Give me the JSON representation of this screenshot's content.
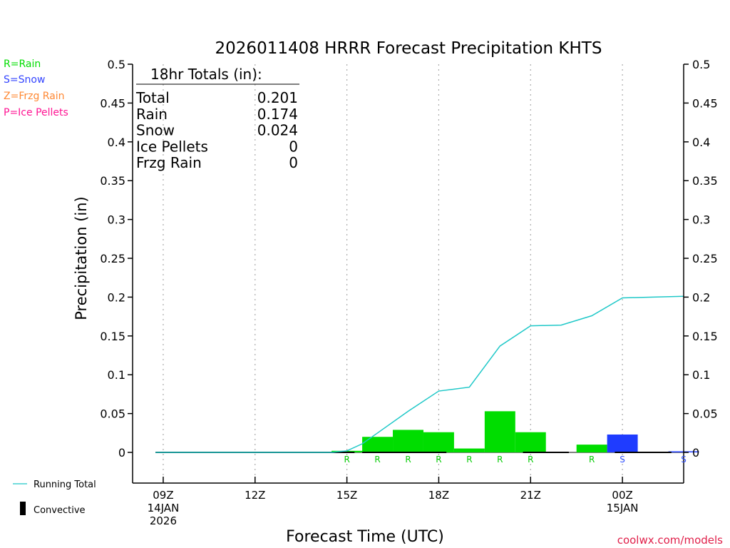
{
  "chart_data": {
    "type": "bar",
    "title": "2026011408 HRRR Forecast Precipitation KHTS",
    "xlabel": "Forecast Time (UTC)",
    "ylabel": "Precipitation (in)",
    "ylim": [
      -0.04,
      0.5
    ],
    "yticks": [
      0,
      0.05,
      0.1,
      0.15,
      0.2,
      0.25,
      0.3,
      0.35,
      0.4,
      0.45,
      0.5
    ],
    "ytick_labels": [
      "0",
      "0.05",
      "0.1",
      "0.15",
      "0.2",
      "0.25",
      "0.3",
      "0.35",
      "0.4",
      "0.45",
      "0.5"
    ],
    "x_unit": "hours after 09Z 14JAN 2026",
    "xlim": [
      -1,
      17
    ],
    "xticks": [
      {
        "hour": 0,
        "lines": [
          "09Z",
          "14JAN",
          "2026"
        ]
      },
      {
        "hour": 3,
        "lines": [
          "12Z"
        ]
      },
      {
        "hour": 6,
        "lines": [
          "15Z"
        ]
      },
      {
        "hour": 9,
        "lines": [
          "18Z"
        ]
      },
      {
        "hour": 12,
        "lines": [
          "21Z"
        ]
      },
      {
        "hour": 15,
        "lines": [
          "00Z",
          "15JAN"
        ]
      }
    ],
    "bars": [
      {
        "start": 5.5,
        "value": 0.002,
        "ptype": "R",
        "color": "#00dd00"
      },
      {
        "start": 6.5,
        "value": 0.02,
        "ptype": "R",
        "color": "#00dd00"
      },
      {
        "start": 7.5,
        "value": 0.029,
        "ptype": "R",
        "color": "#00dd00"
      },
      {
        "start": 8.5,
        "value": 0.026,
        "ptype": "R",
        "color": "#00dd00"
      },
      {
        "start": 9.5,
        "value": 0.005,
        "ptype": "R",
        "color": "#00dd00"
      },
      {
        "start": 10.5,
        "value": 0.053,
        "ptype": "R",
        "color": "#00dd00"
      },
      {
        "start": 11.5,
        "value": 0.026,
        "ptype": "R",
        "color": "#00dd00"
      },
      {
        "start": 13.5,
        "value": 0.01,
        "ptype": "R",
        "color": "#00dd00"
      },
      {
        "start": 14.5,
        "value": 0.023,
        "ptype": "S",
        "color": "#1f3cff"
      },
      {
        "start": 16.5,
        "value": 0.001,
        "ptype": "S",
        "color": "#1f3cff"
      }
    ],
    "ptype_marks": [
      {
        "hour": 6,
        "label": "R",
        "color": "#00cc00"
      },
      {
        "hour": 7,
        "label": "R",
        "color": "#00cc00"
      },
      {
        "hour": 8,
        "label": "R",
        "color": "#00cc00"
      },
      {
        "hour": 9,
        "label": "R",
        "color": "#00cc00"
      },
      {
        "hour": 10,
        "label": "R",
        "color": "#00cc00"
      },
      {
        "hour": 11,
        "label": "R",
        "color": "#00cc00"
      },
      {
        "hour": 12,
        "label": "R",
        "color": "#00cc00"
      },
      {
        "hour": 14,
        "label": "R",
        "color": "#00cc00"
      },
      {
        "hour": 15,
        "label": "S",
        "color": "#3050ff"
      },
      {
        "hour": 17,
        "label": "S",
        "color": "#3050ff"
      }
    ],
    "convective": [
      {
        "start": -0.25,
        "end": 6.25
      },
      {
        "start": 6.5,
        "end": 9.25
      },
      {
        "start": 11.75,
        "end": 13.25
      },
      {
        "start": 14.75,
        "end": 16.6
      }
    ],
    "running_total": {
      "name": "Running Total",
      "color": "#1fc8c8",
      "x": [
        -0.25,
        2,
        4,
        5,
        5.5,
        6,
        6.5,
        7,
        8,
        9,
        10,
        11,
        12,
        13,
        14,
        15,
        16,
        17
      ],
      "y": [
        0,
        0,
        0,
        0,
        0,
        0.002,
        0.011,
        0.025,
        0.053,
        0.079,
        0.084,
        0.137,
        0.163,
        0.164,
        0.176,
        0.199,
        0.2,
        0.201
      ]
    },
    "totals_box": {
      "header": "18hr Totals (in):",
      "rows": [
        {
          "label": "Total",
          "value": "0.201"
        },
        {
          "label": "Rain",
          "value": "0.174"
        },
        {
          "label": "Snow",
          "value": "0.024"
        },
        {
          "label": "Ice Pellets",
          "value": "0"
        },
        {
          "label": "Frzg Rain",
          "value": "0"
        }
      ]
    },
    "legend_ptype": [
      {
        "text": "R=Rain",
        "color": "#00dd00"
      },
      {
        "text": "S=Snow",
        "color": "#3344ff"
      },
      {
        "text": "Z=Frzg Rain",
        "color": "#ff8833"
      },
      {
        "text": "P=Ice Pellets",
        "color": "#ff1493"
      }
    ],
    "legend_lines": {
      "running_total": "Running Total",
      "convective": "Convective"
    },
    "credit": {
      "text": "coolwx.com/models",
      "color": "#e0204a"
    }
  }
}
